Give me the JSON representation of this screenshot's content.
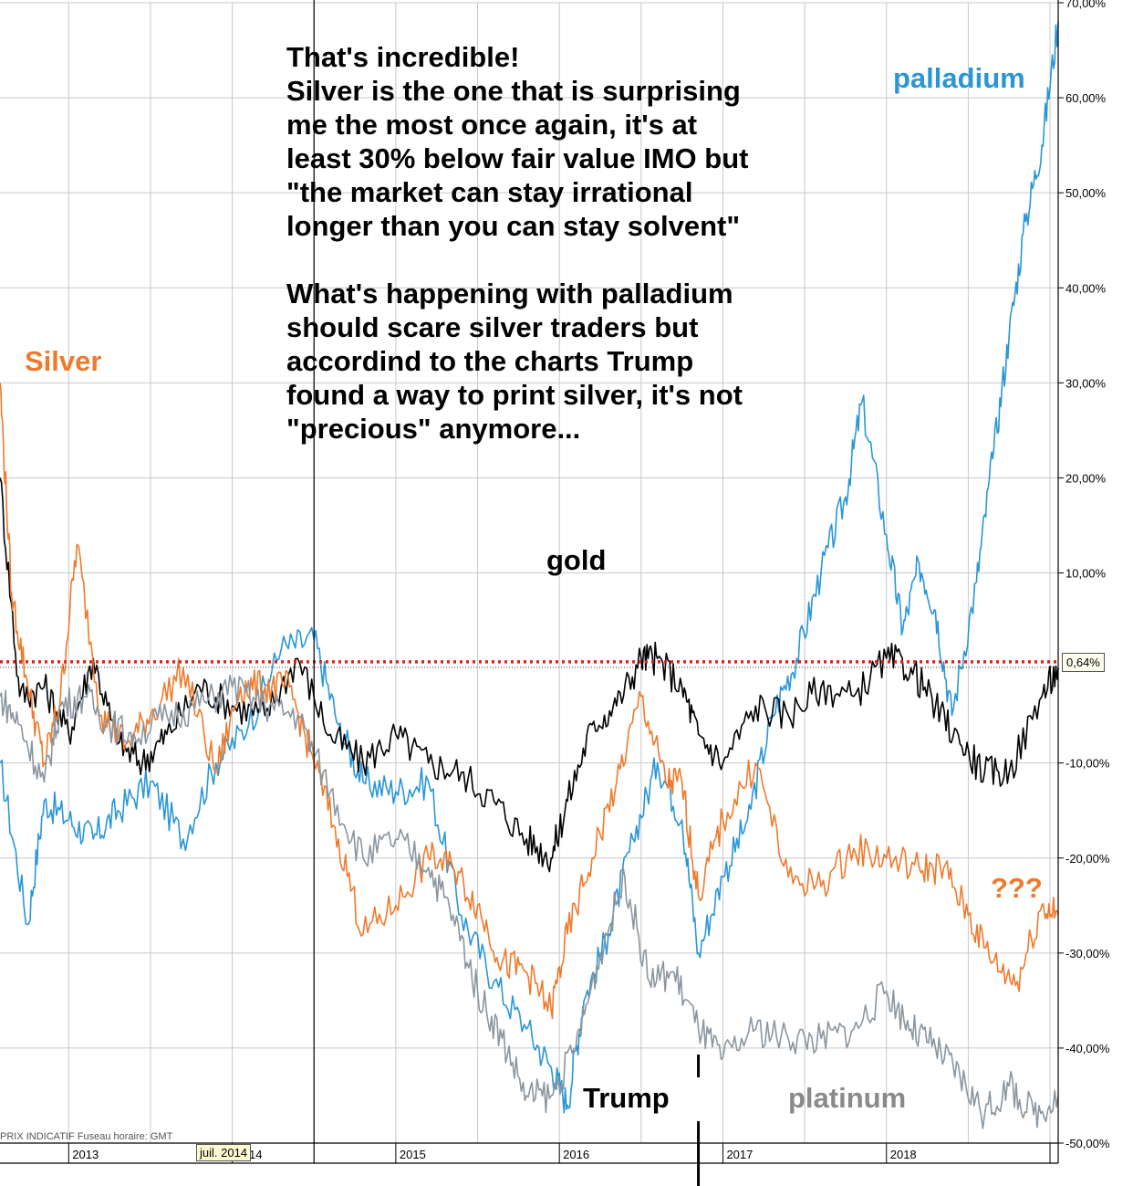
{
  "chart_data": {
    "type": "line",
    "ylabel": "",
    "xlabel": "",
    "ylim": [
      -50,
      70
    ],
    "y_ticks": [
      "70,00%",
      "60,00%",
      "50,00%",
      "40,00%",
      "30,00%",
      "20,00%",
      "10,00%",
      "0,64%",
      "-10,00%",
      "-20,00%",
      "-30,00%",
      "-40,00%",
      "-50,00%"
    ],
    "y_tick_values": [
      70,
      60,
      50,
      40,
      30,
      20,
      10,
      -10,
      -20,
      -30,
      -40,
      -50
    ],
    "x_tick_labels": [
      "2013",
      "2014",
      "2015",
      "2016",
      "2017",
      "2018"
    ],
    "x_range": [
      2012.58,
      2019.05
    ],
    "x_year_boundaries": [
      2013.0,
      2014.0,
      2015.0,
      2016.0,
      2017.0,
      2018.0,
      2019.0
    ],
    "grid": true,
    "reference_line": {
      "value": 0.64,
      "label": "0,64%",
      "style": "dotted",
      "color": "#e02020"
    },
    "cursor_date": "juil. 2014",
    "cursor_x": 2014.5,
    "trump_marker_x": 2016.85,
    "footer_note": "PRIX INDICATIF   Fuseau horaire: GMT",
    "series": [
      {
        "name": "palladium",
        "color": "#2a96d6",
        "x": [
          2012.58,
          2012.75,
          2012.85,
          2013.0,
          2013.15,
          2013.3,
          2013.5,
          2013.7,
          2013.9,
          2014.1,
          2014.3,
          2014.5,
          2014.65,
          2014.8,
          2015.0,
          2015.2,
          2015.4,
          2015.6,
          2015.8,
          2015.95,
          2016.05,
          2016.15,
          2016.3,
          2016.45,
          2016.6,
          2016.75,
          2016.85,
          2017.0,
          2017.15,
          2017.3,
          2017.45,
          2017.6,
          2017.75,
          2017.85,
          2018.0,
          2018.1,
          2018.2,
          2018.3,
          2018.4,
          2018.55,
          2018.65,
          2018.75,
          2018.85,
          2018.95,
          2019.05
        ],
        "values": [
          -10,
          -27,
          -14,
          -16,
          -18,
          -15,
          -12,
          -18,
          -10,
          -6,
          2,
          3,
          -6,
          -12,
          -13,
          -12,
          -26,
          -33,
          -38,
          -42,
          -46,
          -35,
          -28,
          -18,
          -10,
          -16,
          -30,
          -22,
          -16,
          -5,
          1,
          10,
          18,
          28,
          14,
          4,
          11,
          6,
          -5,
          9,
          22,
          35,
          47,
          55,
          68
        ]
      },
      {
        "name": "gold",
        "color": "#000000",
        "x": [
          2012.58,
          2012.7,
          2012.85,
          2013.0,
          2013.15,
          2013.3,
          2013.45,
          2013.6,
          2013.8,
          2014.0,
          2014.2,
          2014.4,
          2014.6,
          2014.8,
          2015.0,
          2015.2,
          2015.4,
          2015.6,
          2015.8,
          2015.95,
          2016.05,
          2016.2,
          2016.35,
          2016.5,
          2016.6,
          2016.75,
          2016.85,
          2017.0,
          2017.2,
          2017.4,
          2017.6,
          2017.8,
          2018.0,
          2018.15,
          2018.3,
          2018.45,
          2018.6,
          2018.75,
          2018.95,
          2019.05
        ],
        "values": [
          20,
          -3,
          -2,
          -7,
          1,
          -8,
          -10,
          -7,
          -2,
          -4,
          -5,
          1,
          -7,
          -10,
          -7,
          -10,
          -11,
          -14,
          -18,
          -20,
          -14,
          -6,
          -4,
          1,
          1,
          -2,
          -7,
          -10,
          -4,
          -5,
          -2,
          -3,
          1,
          0,
          -4,
          -8,
          -11,
          -11,
          -3,
          0
        ]
      },
      {
        "name": "Silver",
        "color": "#ef7a2c",
        "x": [
          2012.58,
          2012.65,
          2012.75,
          2012.85,
          2012.95,
          2013.05,
          2013.2,
          2013.35,
          2013.5,
          2013.7,
          2013.9,
          2014.05,
          2014.2,
          2014.35,
          2014.5,
          2014.65,
          2014.8,
          2015.0,
          2015.2,
          2015.35,
          2015.5,
          2015.65,
          2015.8,
          2015.95,
          2016.05,
          2016.2,
          2016.35,
          2016.5,
          2016.65,
          2016.75,
          2016.85,
          2017.0,
          2017.2,
          2017.4,
          2017.6,
          2017.8,
          2018.0,
          2018.2,
          2018.35,
          2018.5,
          2018.65,
          2018.8,
          2018.95,
          2019.05
        ],
        "values": [
          30,
          8,
          -2,
          -10,
          -3,
          13,
          -5,
          -8,
          -5,
          0,
          -11,
          -2,
          -2,
          -2,
          -10,
          -18,
          -28,
          -25,
          -20,
          -21,
          -25,
          -31,
          -32,
          -36,
          -28,
          -20,
          -12,
          -3,
          -12,
          -12,
          -24,
          -16,
          -10,
          -22,
          -23,
          -19,
          -20,
          -21,
          -21,
          -26,
          -31,
          -33,
          -25,
          -26
        ]
      },
      {
        "name": "platinum",
        "color": "#8a96a0",
        "x": [
          2012.58,
          2012.7,
          2012.85,
          2012.95,
          2013.1,
          2013.25,
          2013.4,
          2013.6,
          2013.8,
          2014.0,
          2014.2,
          2014.4,
          2014.6,
          2014.8,
          2015.0,
          2015.2,
          2015.35,
          2015.5,
          2015.65,
          2015.8,
          2015.95,
          2016.1,
          2016.25,
          2016.4,
          2016.55,
          2016.7,
          2016.85,
          2017.0,
          2017.2,
          2017.4,
          2017.6,
          2017.8,
          2018.0,
          2018.15,
          2018.3,
          2018.45,
          2018.6,
          2018.75,
          2018.9,
          2019.05
        ],
        "values": [
          -3,
          -6,
          -12,
          -4,
          -3,
          -6,
          -7,
          -5,
          -4,
          -2,
          -4,
          -5,
          -13,
          -20,
          -18,
          -21,
          -26,
          -34,
          -39,
          -45,
          -45,
          -40,
          -30,
          -22,
          -33,
          -32,
          -38,
          -41,
          -38,
          -39,
          -39,
          -38,
          -34,
          -38,
          -40,
          -43,
          -47,
          -44,
          -47,
          -45
        ]
      }
    ]
  },
  "annotations": {
    "note": "That's incredible!\nSilver is the one that is surprising\nme the most once again, it's at\nleast 30% below fair value IMO but\n\"the market can stay irrational\nlonger than you can stay solvent\"\n\nWhat's happening with palladium\nshould scare silver traders but\naccordind to the charts Trump\nfound a way to print silver, it's not\n\"precious\" anymore...",
    "silver_label": "Silver",
    "palladium_label": "palladium",
    "gold_label": "gold",
    "trump_label": "Trump",
    "platinum_label": "platinum",
    "question_label": "???"
  },
  "colors": {
    "silver": "#ef7a2c",
    "palladium": "#2a96d6",
    "gold": "#000000",
    "platinum": "#8a96a0",
    "reference": "#e02020",
    "grid": "#c8c8c8"
  }
}
